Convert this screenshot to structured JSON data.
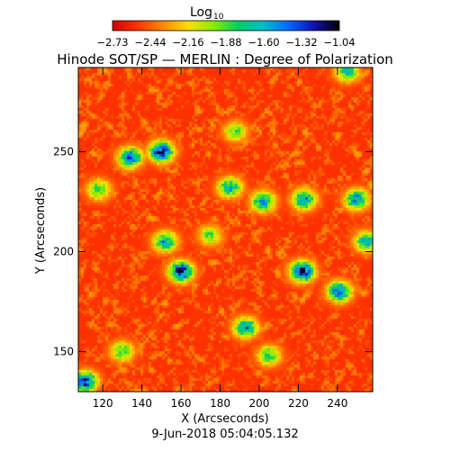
{
  "chart_data": {
    "type": "heatmap",
    "title": "Hinode SOT/SP — MERLIN : Degree of Polarization",
    "xlabel": "X (Arcseconds)",
    "ylabel": "Y (Arcseconds)",
    "timestamp": "9-Jun-2018 05:04:05.132",
    "xlim": [
      107.5,
      258
    ],
    "ylim": [
      130,
      292
    ],
    "x_ticks": [
      120,
      140,
      160,
      180,
      200,
      220,
      240
    ],
    "y_ticks": [
      150,
      200,
      250
    ],
    "grid": false,
    "colorbar": {
      "label_main": "Log",
      "label_sub": "10",
      "range": [
        -2.73,
        -1.04
      ],
      "tick_labels": [
        "−2.73",
        "−2.44",
        "−2.16",
        "−1.88",
        "−1.60",
        "−1.32",
        "−1.04"
      ],
      "colormap": [
        "#cc0000",
        "#ff3300",
        "#ff8800",
        "#ffdd00",
        "#88ee00",
        "#00cc66",
        "#00bbcc",
        "#0066ff",
        "#1111aa",
        "#000000"
      ]
    },
    "background_level": -2.55,
    "polarized_regions": [
      {
        "x": 150,
        "y": 250,
        "peak": -1.2
      },
      {
        "x": 134,
        "y": 247,
        "peak": -1.4
      },
      {
        "x": 185,
        "y": 232,
        "peak": -1.6
      },
      {
        "x": 202,
        "y": 225,
        "peak": -1.55
      },
      {
        "x": 223,
        "y": 226,
        "peak": -1.55
      },
      {
        "x": 250,
        "y": 226,
        "peak": -1.5
      },
      {
        "x": 118,
        "y": 231,
        "peak": -1.8
      },
      {
        "x": 160,
        "y": 190,
        "peak": -1.2
      },
      {
        "x": 152,
        "y": 205,
        "peak": -1.6
      },
      {
        "x": 175,
        "y": 208,
        "peak": -1.9
      },
      {
        "x": 222,
        "y": 190,
        "peak": -1.2
      },
      {
        "x": 241,
        "y": 180,
        "peak": -1.4
      },
      {
        "x": 255,
        "y": 205,
        "peak": -1.6
      },
      {
        "x": 193,
        "y": 162,
        "peak": -1.5
      },
      {
        "x": 205,
        "y": 148,
        "peak": -1.8
      },
      {
        "x": 111,
        "y": 135,
        "peak": -1.3
      },
      {
        "x": 130,
        "y": 150,
        "peak": -1.8
      },
      {
        "x": 188,
        "y": 260,
        "peak": -1.9
      },
      {
        "x": 245,
        "y": 290,
        "peak": -1.7
      }
    ]
  }
}
